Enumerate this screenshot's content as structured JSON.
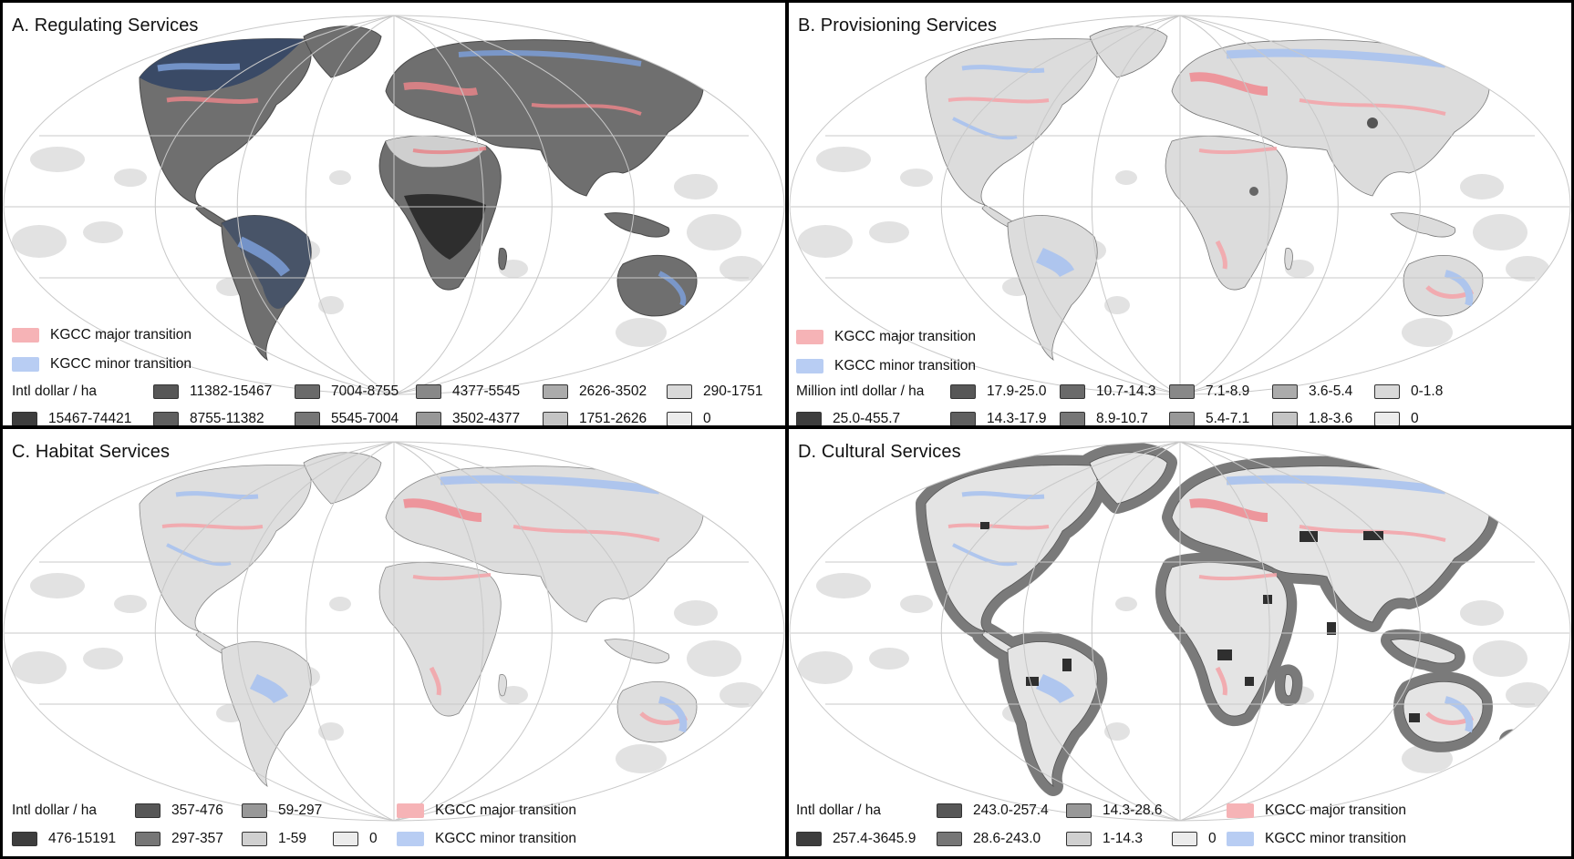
{
  "colors": {
    "major": "#f6b3b6",
    "minor": "#b8cdf3",
    "land": "#e2e2e2",
    "graticule": "#bdbdbd"
  },
  "panels": {
    "a": {
      "title": "A. Regulating Services",
      "unit": "Intl dollar / ha",
      "major_label": "KGCC major transition",
      "minor_label": "KGCC minor transition",
      "bins": [
        {
          "label": "15467-74421",
          "color": "#3d3d3d"
        },
        {
          "label": "11382-15467",
          "color": "#575757"
        },
        {
          "label": "8755-11382",
          "color": "#5f5f5f"
        },
        {
          "label": "7004-8755",
          "color": "#6a6a6a"
        },
        {
          "label": "5545-7004",
          "color": "#767676"
        },
        {
          "label": "4377-5545",
          "color": "#888888"
        },
        {
          "label": "3502-4377",
          "color": "#989898"
        },
        {
          "label": "2626-3502",
          "color": "#ababab"
        },
        {
          "label": "1751-2626",
          "color": "#c4c4c4"
        },
        {
          "label": "290-1751",
          "color": "#d9d9d9"
        },
        {
          "label": "0",
          "color": "#ececec"
        }
      ]
    },
    "b": {
      "title": "B. Provisioning Services",
      "unit": "Million intl dollar / ha",
      "major_label": "KGCC major transition",
      "minor_label": "KGCC minor transition",
      "bins": [
        {
          "label": "25.0-455.7",
          "color": "#3d3d3d"
        },
        {
          "label": "17.9-25.0",
          "color": "#575757"
        },
        {
          "label": "14.3-17.9",
          "color": "#5f5f5f"
        },
        {
          "label": "10.7-14.3",
          "color": "#6a6a6a"
        },
        {
          "label": "8.9-10.7",
          "color": "#767676"
        },
        {
          "label": "7.1-8.9",
          "color": "#888888"
        },
        {
          "label": "5.4-7.1",
          "color": "#989898"
        },
        {
          "label": "3.6-5.4",
          "color": "#ababab"
        },
        {
          "label": "1.8-3.6",
          "color": "#c4c4c4"
        },
        {
          "label": "0-1.8",
          "color": "#d9d9d9"
        },
        {
          "label": "0",
          "color": "#ececec"
        }
      ]
    },
    "c": {
      "title": "C. Habitat Services",
      "unit": "Intl dollar / ha",
      "major_label": "KGCC major transition",
      "minor_label": "KGCC minor transition",
      "bins": [
        {
          "label": "476-15191",
          "color": "#3d3d3d"
        },
        {
          "label": "357-476",
          "color": "#575757"
        },
        {
          "label": "297-357",
          "color": "#767676"
        },
        {
          "label": "59-297",
          "color": "#989898"
        },
        {
          "label": "1-59",
          "color": "#d0d0d0"
        },
        {
          "label": "0",
          "color": "#ececec"
        }
      ]
    },
    "d": {
      "title": "D. Cultural Services",
      "unit": "Intl dollar / ha",
      "major_label": "KGCC major transition",
      "minor_label": "KGCC minor transition",
      "bins": [
        {
          "label": "257.4-3645.9",
          "color": "#3d3d3d"
        },
        {
          "label": "243.0-257.4",
          "color": "#575757"
        },
        {
          "label": "28.6-243.0",
          "color": "#767676"
        },
        {
          "label": "14.3-28.6",
          "color": "#989898"
        },
        {
          "label": "1-14.3",
          "color": "#d0d0d0"
        },
        {
          "label": "0",
          "color": "#ececec"
        }
      ]
    }
  }
}
